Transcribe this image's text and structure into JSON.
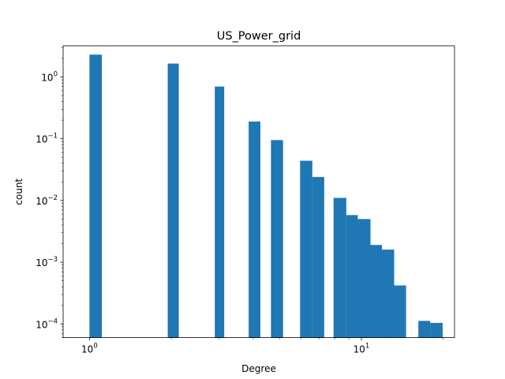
{
  "chart_data": {
    "type": "bar",
    "title": "US_Power_grid",
    "xlabel": "Degree",
    "ylabel": "count",
    "x_scale": "log",
    "y_scale": "log",
    "xlim": [
      0.8,
      22
    ],
    "ylim": [
      6e-05,
      3.2
    ],
    "grid": false,
    "color": "#1f77b4",
    "x_ticks": [
      {
        "value": 1,
        "base": "10",
        "exp": "0"
      },
      {
        "value": 10,
        "base": "10",
        "exp": "1"
      }
    ],
    "y_ticks": [
      {
        "value": 0.0001,
        "base": "10",
        "exp": "−4"
      },
      {
        "value": 0.001,
        "base": "10",
        "exp": "−3"
      },
      {
        "value": 0.01,
        "base": "10",
        "exp": "−2"
      },
      {
        "value": 0.1,
        "base": "10",
        "exp": "−1"
      },
      {
        "value": 1,
        "base": "10",
        "exp": "0"
      }
    ],
    "bars": [
      {
        "x0": 1.0,
        "x1": 1.11,
        "value": 2.3
      },
      {
        "x0": 1.94,
        "x1": 2.13,
        "value": 1.65
      },
      {
        "x0": 2.89,
        "x1": 3.13,
        "value": 0.7
      },
      {
        "x0": 3.85,
        "x1": 4.25,
        "value": 0.19
      },
      {
        "x0": 4.65,
        "x1": 5.15,
        "value": 0.095
      },
      {
        "x0": 5.95,
        "x1": 6.6,
        "value": 0.044
      },
      {
        "x0": 6.6,
        "x1": 7.3,
        "value": 0.024
      },
      {
        "x0": 7.9,
        "x1": 8.8,
        "value": 0.011
      },
      {
        "x0": 8.8,
        "x1": 9.7,
        "value": 0.0058
      },
      {
        "x0": 9.7,
        "x1": 10.8,
        "value": 0.005
      },
      {
        "x0": 10.8,
        "x1": 11.9,
        "value": 0.0019
      },
      {
        "x0": 11.9,
        "x1": 13.2,
        "value": 0.0016
      },
      {
        "x0": 13.2,
        "x1": 14.6,
        "value": 0.00042
      },
      {
        "x0": 16.2,
        "x1": 17.9,
        "value": 0.000112
      },
      {
        "x0": 17.9,
        "x1": 19.9,
        "value": 0.000104
      }
    ]
  }
}
